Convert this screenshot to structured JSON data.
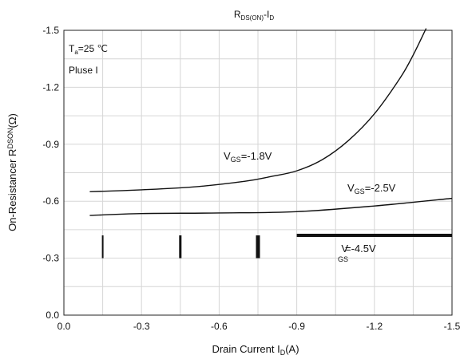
{
  "chart_data": {
    "type": "line",
    "title": {
      "main": "R",
      "sub": "DS(ON)",
      "dash": "-I",
      "sub2": "D"
    },
    "xlabel": {
      "main": "Drain Current I",
      "sub": "D",
      "tail": "(A)"
    },
    "ylabel": {
      "main": "On-Resistancer R",
      "sup": "DSON",
      "tail": "(Ω)"
    },
    "xlim": [
      0,
      -1.5
    ],
    "ylim": [
      0,
      -1.5
    ],
    "x_ticks": [
      0,
      -0.3,
      -0.6,
      -0.9,
      -1.2,
      -1.5
    ],
    "x_tick_labels": [
      "0.0",
      "-0.3",
      "-0.6",
      "-0.9",
      "-1.2",
      "-1.5"
    ],
    "y_ticks": [
      0,
      -0.3,
      -0.6,
      -0.9,
      -1.2,
      -1.5
    ],
    "y_tick_labels": [
      "0.0",
      "-0.3",
      "-0.6",
      "-0.9",
      "-1.2",
      "-1.5"
    ],
    "grid": true,
    "annotations": {
      "temp": {
        "main": "T",
        "sub": "a",
        "tail": "=25 ℃"
      },
      "pulse": "Pluse I"
    },
    "series": [
      {
        "name": {
          "main": "V",
          "sub": "GS",
          "tail": "=-1.8V"
        },
        "x": [
          -0.1,
          -0.3,
          -0.5,
          -0.7,
          -0.8,
          -0.9,
          -1.0,
          -1.1,
          -1.2,
          -1.3,
          -1.35,
          -1.4
        ],
        "y": [
          -0.65,
          -0.66,
          -0.675,
          -0.705,
          -0.73,
          -0.76,
          -0.82,
          -0.92,
          -1.06,
          -1.25,
          -1.37,
          -1.51
        ]
      },
      {
        "name": {
          "main": "V",
          "sub": "GS",
          "tail": "=-2.5V"
        },
        "x": [
          -0.1,
          -0.3,
          -0.6,
          -0.9,
          -1.2,
          -1.5
        ],
        "y": [
          -0.525,
          -0.535,
          -0.538,
          -0.545,
          -0.575,
          -0.615
        ]
      },
      {
        "name": {
          "main": "V",
          "sub": "GS",
          "tail": "=-4.5V"
        },
        "y": -0.42,
        "segments": [
          {
            "x": -0.15,
            "y0": -0.3,
            "y1": -0.42
          },
          {
            "x": -0.45,
            "y0": -0.3,
            "y1": -0.42
          },
          {
            "x": -0.75,
            "y0": -0.3,
            "y1": -0.42
          },
          {
            "x0": -0.9,
            "x1": -1.5,
            "y": -0.42
          }
        ]
      }
    ]
  }
}
